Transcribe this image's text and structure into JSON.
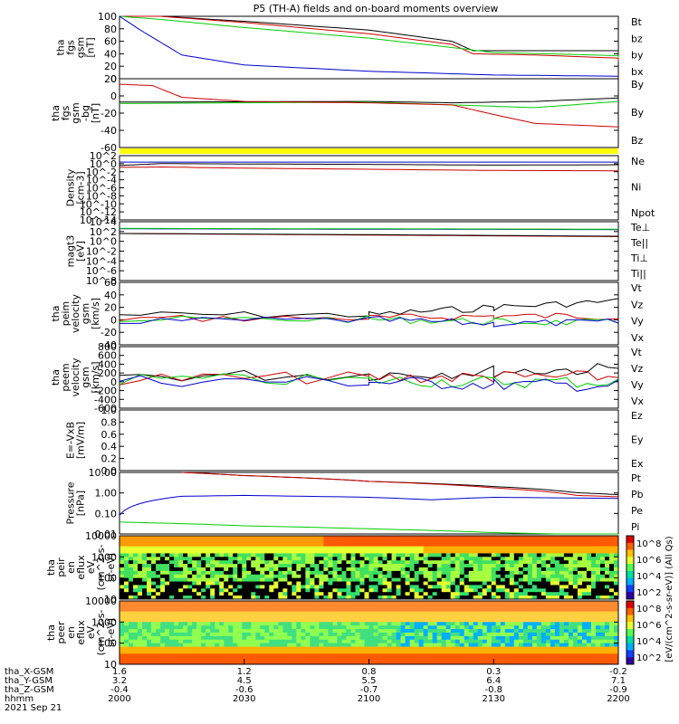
{
  "title": "P5 (TH-A) fields and on-board moments overview",
  "chart_data": [
    {
      "type": "line",
      "ylabel": [
        "tha",
        "fgs",
        "gsm",
        "[nT]"
      ],
      "yticks": [
        "0",
        "20",
        "40",
        "60",
        "80",
        "100"
      ],
      "ylim": [
        0,
        100
      ],
      "series": [
        {
          "name": "Bt",
          "color": "#000000",
          "x": [
            2000,
            2010,
            2030,
            2100,
            2120,
            2125,
            2140,
            2160,
            2200
          ],
          "values": [
            104,
            100,
            92,
            78,
            60,
            45,
            45,
            45,
            42
          ]
        },
        {
          "name": "bz",
          "color": "#cc0000",
          "x": [
            2000,
            2010,
            2030,
            2100,
            2120,
            2125,
            2140,
            2160,
            2200
          ],
          "values": [
            104,
            100,
            90,
            72,
            55,
            40,
            38,
            33,
            27
          ]
        },
        {
          "name": "by",
          "color": "#00cc00",
          "x": [
            2000,
            2010,
            2030,
            2100,
            2120,
            2130,
            2160,
            2200
          ],
          "values": [
            100,
            95,
            82,
            65,
            50,
            42,
            37,
            33
          ]
        },
        {
          "name": "bx",
          "color": "#0000cc",
          "x": [
            2000,
            2005,
            2015,
            2030,
            2100,
            2130,
            2200
          ],
          "values": [
            100,
            78,
            38,
            22,
            12,
            6,
            4
          ]
        }
      ]
    },
    {
      "type": "line",
      "ylabel": [
        "tha",
        "fgs",
        "gsm",
        "-bg",
        "[nT]"
      ],
      "yticks": [
        "-60",
        "-40",
        "-20",
        "0",
        "20"
      ],
      "ylim": [
        -70,
        30
      ],
      "series": [
        {
          "name": "By",
          "color": "#000000",
          "x": [
            2000,
            2100,
            2120,
            2140,
            2200
          ],
          "values": [
            -4,
            -3,
            -5,
            -3,
            2
          ]
        },
        {
          "name": "By",
          "color": "#00cc00",
          "x": [
            2000,
            2100,
            2120,
            2140,
            2200
          ],
          "values": [
            -6,
            -4,
            -8,
            -12,
            -3
          ]
        },
        {
          "name": "Bz",
          "color": "#cc0000",
          "x": [
            2000,
            2008,
            2015,
            2030,
            2100,
            2120,
            2130,
            2140,
            2200
          ],
          "values": [
            22,
            20,
            3,
            -3,
            -5,
            -8,
            -22,
            -35,
            -40
          ]
        }
      ]
    },
    {
      "type": "line",
      "ylabel": [
        "Density",
        "[cm-3]"
      ],
      "yticks": [
        "10^2",
        "10^0",
        "10^-2",
        "10^-4",
        "10^-6",
        "10^-8",
        "10^-10",
        "10^-12",
        "10^-14"
      ],
      "ylim": [
        -14,
        3
      ],
      "series": [
        {
          "name": "Ne",
          "color": "#cc0000",
          "x": [
            2000,
            2010,
            2030,
            2100,
            2130,
            2200
          ],
          "values": [
            -0.1,
            0.0,
            -0.3,
            -0.6,
            -0.9,
            -1.0
          ]
        },
        {
          "name": "Ni",
          "color": "#000000",
          "x": [
            2000,
            2010,
            2030,
            2100,
            2130,
            2200
          ],
          "values": [
            0.4,
            0.9,
            0.8,
            0.7,
            0.5,
            0.6
          ]
        },
        {
          "name": "Npot",
          "color": "#0000cc",
          "x": [
            2000,
            2010,
            2030,
            2100,
            2130,
            2200
          ],
          "values": [
            1.3,
            1.3,
            1.3,
            1.3,
            1.3,
            1.3
          ]
        }
      ]
    },
    {
      "type": "line",
      "ylabel": [
        "magt3",
        "[eV]"
      ],
      "yticks": [
        "10^4",
        "10^2",
        "10^0",
        "10^-2",
        "10^-4",
        "10^-6",
        "10^-8"
      ],
      "ylim": [
        -10,
        5
      ],
      "series": [
        {
          "name": "Te⊥",
          "color": "#cc0000",
          "x": [
            2000,
            2100,
            2200
          ],
          "values": [
            2.0,
            1.6,
            1.2
          ]
        },
        {
          "name": "Te||",
          "color": "#000000",
          "x": [
            2000,
            2100,
            2200
          ],
          "values": [
            2.0,
            1.7,
            1.3
          ]
        },
        {
          "name": "Ti⊥",
          "color": "#0000cc",
          "x": [
            2000,
            2100,
            2200
          ],
          "values": [
            3.2,
            3.1,
            3.0
          ]
        },
        {
          "name": "Ti||",
          "color": "#00cc00",
          "x": [
            2000,
            2100,
            2200
          ],
          "values": [
            3.3,
            3.2,
            3.1
          ]
        }
      ]
    },
    {
      "type": "line",
      "ylabel": [
        "tha",
        "peim",
        "velocity",
        "gsm",
        "[km/s]"
      ],
      "yticks": [
        "-40",
        "-20",
        "0",
        "20",
        "40",
        "60"
      ],
      "ylim": [
        -40,
        60
      ],
      "series": [
        {
          "name": "Vt",
          "color": "#000000",
          "x": [
            2000,
            2100,
            2130,
            2200
          ],
          "values": [
            8,
            8,
            20,
            30
          ]
        },
        {
          "name": "Vz",
          "color": "#cc0000",
          "x": [
            2000,
            2100,
            2130,
            2200
          ],
          "values": [
            2,
            3,
            6,
            6
          ]
        },
        {
          "name": "Vy",
          "color": "#00cc00",
          "x": [
            2000,
            2100,
            2130,
            2200
          ],
          "values": [
            0,
            1,
            -3,
            -5
          ]
        },
        {
          "name": "Vx",
          "color": "#0000cc",
          "x": [
            2000,
            2100,
            2130,
            2200
          ],
          "values": [
            -2,
            0,
            -6,
            -4
          ]
        }
      ]
    },
    {
      "type": "line",
      "ylabel": [
        "tha",
        "peem",
        "velocity",
        "gsm",
        "[km/s]"
      ],
      "yticks": [
        "-600",
        "-400",
        "-200",
        "0",
        "200",
        "400",
        "600",
        "800"
      ],
      "ylim": [
        -700,
        800
      ],
      "series": [
        {
          "name": "Vt",
          "color": "#000000",
          "x": [
            2000,
            2100,
            2130,
            2200
          ],
          "values": [
            80,
            120,
            200,
            260
          ]
        },
        {
          "name": "Vz",
          "color": "#cc0000",
          "x": [
            2000,
            2100,
            2130,
            2200
          ],
          "values": [
            20,
            40,
            60,
            60
          ]
        },
        {
          "name": "Vy",
          "color": "#00cc00",
          "x": [
            2000,
            2100,
            2130,
            2200
          ],
          "values": [
            0,
            -20,
            -60,
            -60
          ]
        },
        {
          "name": "Vx",
          "color": "#0000cc",
          "x": [
            2000,
            2100,
            2130,
            2200
          ],
          "values": [
            -20,
            -60,
            -120,
            -150
          ]
        }
      ]
    },
    {
      "type": "line",
      "ylabel": [
        "E=-VxB",
        "[mV/m]"
      ],
      "yticks": [
        "0.0",
        "0.2",
        "0.4",
        "0.6",
        "0.8",
        "1.0"
      ],
      "ylim": [
        0,
        1
      ],
      "series": [
        {
          "name": "Ez",
          "color": "#cc0000",
          "x": [],
          "values": []
        },
        {
          "name": "Ey",
          "color": "#00cc00",
          "x": [],
          "values": []
        },
        {
          "name": "Ex",
          "color": "#0000cc",
          "x": [],
          "values": []
        }
      ]
    },
    {
      "type": "line",
      "ylabel": [
        "Pressure",
        "[nPa]"
      ],
      "yticks": [
        "0.01",
        "0.10",
        "1.00",
        "10.00"
      ],
      "ylim": [
        0.005,
        20
      ],
      "scale": "log",
      "series": [
        {
          "name": "Pt",
          "color": "#000000",
          "x": [
            2015,
            2030,
            2100,
            2130,
            2150,
            2200
          ],
          "values": [
            20,
            13,
            6,
            3,
            1.3,
            1.0
          ]
        },
        {
          "name": "Pb",
          "color": "#cc0000",
          "x": [
            2015,
            2030,
            2100,
            2130,
            2150,
            2200
          ],
          "values": [
            20,
            13,
            6,
            2.5,
            0.9,
            0.75
          ]
        },
        {
          "name": "Pe",
          "color": "#00cc00",
          "x": [
            2000,
            2030,
            2100,
            2130,
            2200
          ],
          "values": [
            0.025,
            0.015,
            0.01,
            0.006,
            0.004
          ]
        },
        {
          "name": "Pi",
          "color": "#0000cc",
          "x": [
            2000,
            2005,
            2015,
            2030,
            2100,
            2115,
            2130,
            2200
          ],
          "values": [
            0.06,
            0.3,
            0.8,
            0.9,
            0.7,
            0.5,
            0.7,
            0.6
          ]
        }
      ]
    },
    {
      "type": "heatmap",
      "ylabel": [
        "tha",
        "peir",
        "en",
        "eflux",
        "eV",
        "(cm^2-s-",
        "sr-eV)"
      ],
      "yticks": [
        "10",
        "100",
        "1000",
        "10000"
      ],
      "ylim": [
        5,
        30000
      ],
      "scale": "log"
    },
    {
      "type": "heatmap",
      "ylabel": [
        "tha",
        "peer",
        "en",
        "eflux",
        "eV",
        "(cm^2-s-",
        "sr-eV)"
      ],
      "yticks": [
        "10",
        "100",
        "1000",
        "10000"
      ],
      "ylim": [
        5,
        30000
      ],
      "scale": "log"
    }
  ],
  "colorbar": {
    "label": "[eV/(cm^2-s-sr-eV)] (All Qs)",
    "upper_ticks": [
      "10^8",
      "10^6",
      "10^4",
      "10^2"
    ],
    "lower_ticks": [
      "10^8",
      "10^6",
      "10^4",
      "10^2"
    ]
  },
  "xaxis": {
    "row_labels": [
      "tha_X-GSM",
      "tha_Y-GSM",
      "tha_Z-GSM",
      "hhmm",
      "2021 Sep 21"
    ],
    "columns": [
      [
        "1.6",
        "3.2",
        "-0.4",
        "2000"
      ],
      [
        "1.2",
        "4.5",
        "-0.6",
        "2030"
      ],
      [
        "0.8",
        "5.5",
        "-0.7",
        "2100"
      ],
      [
        "0.3",
        "6.4",
        "-0.8",
        "2130"
      ],
      [
        "-0.2",
        "7.1",
        "-0.9",
        "2200"
      ]
    ]
  }
}
